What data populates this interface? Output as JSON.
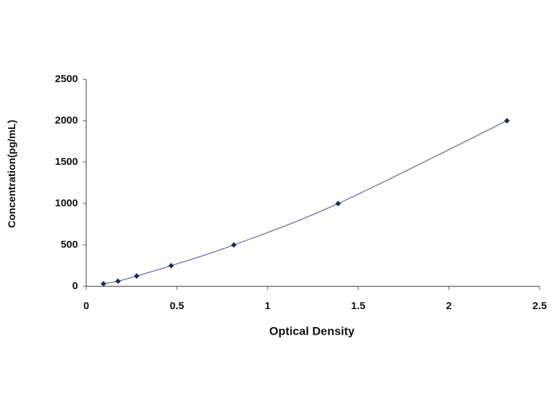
{
  "chart_data": {
    "type": "scatter",
    "x_label": "Optical Density",
    "y_label": "Concentration(pg/mL)",
    "series": [
      {
        "color": "#1f2a5c",
        "line_color": "#6a6f99",
        "x": [
          0.095,
          0.175,
          0.278,
          0.468,
          0.814,
          1.389,
          2.32
        ],
        "values": [
          31.25,
          62.5,
          125,
          250,
          500,
          1000,
          2000
        ]
      }
    ],
    "line": true,
    "xlim": [
      0,
      2.5
    ],
    "xticks": [
      0,
      0.5,
      1,
      1.5,
      2,
      2.5
    ],
    "ylim": [
      0,
      2500
    ],
    "yticks": [
      0,
      500,
      1000,
      1500,
      2000,
      2500
    ],
    "grid": false
  }
}
